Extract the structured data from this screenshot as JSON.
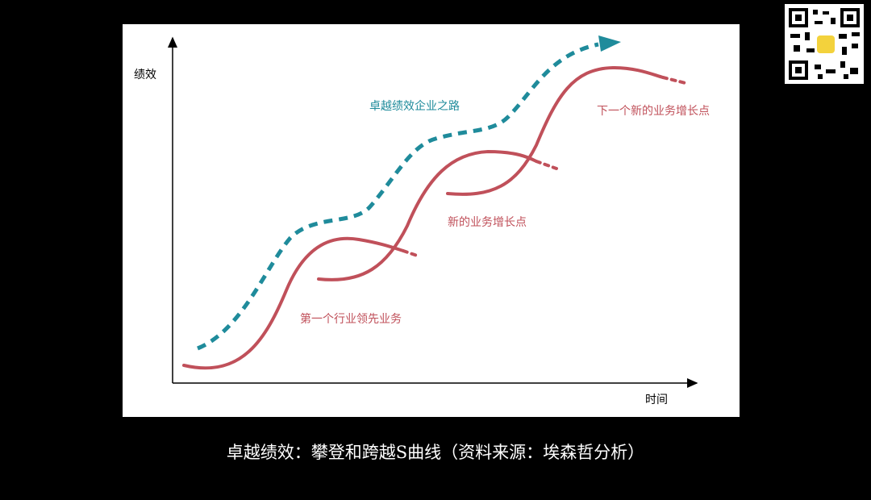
{
  "diagram": {
    "y_axis_label": "绩效",
    "x_axis_label": "时间",
    "curves": [
      {
        "label": "卓越绩效企业之路"
      },
      {
        "label": "下一个新的业务增长点"
      },
      {
        "label": "新的业务增长点"
      },
      {
        "label": "第一个行业领先业务"
      }
    ],
    "caption": "卓越绩效：攀登和跨越S曲线（资料来源：埃森哲分析）"
  }
}
